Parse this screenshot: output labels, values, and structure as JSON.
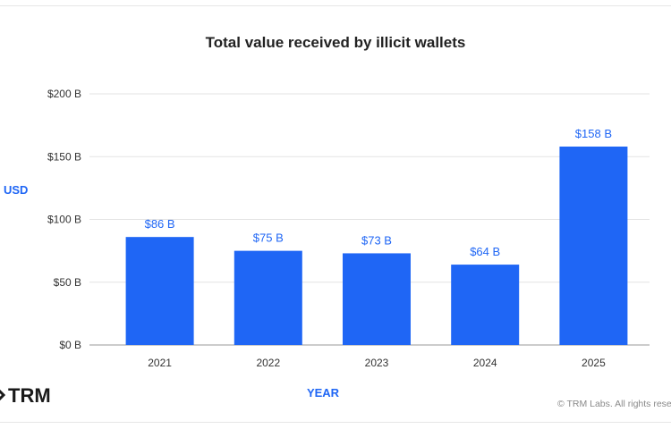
{
  "chart_data": {
    "type": "bar",
    "title": "Total value received by illicit wallets",
    "xlabel": "YEAR",
    "ylabel": "USD",
    "categories": [
      "2021",
      "2022",
      "2023",
      "2024",
      "2025"
    ],
    "values": [
      86,
      75,
      73,
      64,
      158
    ],
    "data_labels": [
      "$86 B",
      "$75 B",
      "$73 B",
      "$64 B",
      "$158 B"
    ],
    "ylim": [
      0,
      200
    ],
    "yticks": [
      0,
      50,
      100,
      150,
      200
    ],
    "ytick_labels": [
      "$0 B",
      "$50 B",
      "$100 B",
      "$150 B",
      "$200 B"
    ],
    "grid": true,
    "bar_color": "#1f66f5",
    "label_color": "#1f66f5"
  },
  "branding": {
    "logo_text": "TRM",
    "copyright": "© TRM Labs. All rights rese"
  }
}
